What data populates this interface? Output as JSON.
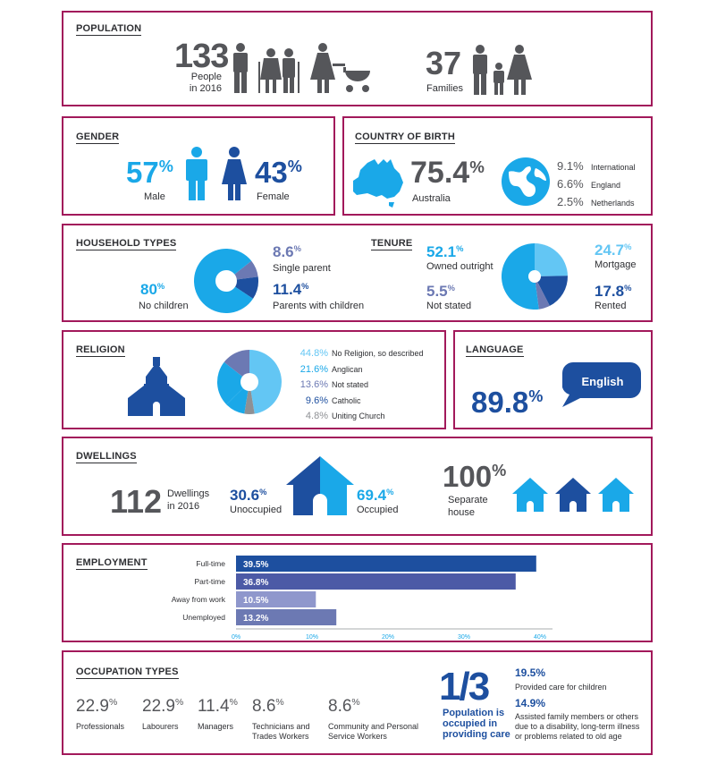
{
  "population": {
    "title": "POPULATION",
    "people": "133",
    "people_label1": "People",
    "people_label2": "in 2016",
    "families": "37",
    "families_label": "Families"
  },
  "gender": {
    "title": "GENDER",
    "male_value": "57",
    "male_label": "Male",
    "female_value": "43",
    "female_label": "Female",
    "pct": "%"
  },
  "cob": {
    "title": "COUNTRY OF BIRTH",
    "australia_value": "75.4",
    "pct": "%",
    "australia_label": "Australia",
    "others": [
      {
        "value": "9.1%",
        "label": "International"
      },
      {
        "value": "6.6%",
        "label": "England"
      },
      {
        "value": "2.5%",
        "label": "Netherlands"
      }
    ]
  },
  "household": {
    "title": "HOUSEHOLD TYPES",
    "no_children_value": "80",
    "no_children_label": "No children",
    "single_value": "8.6",
    "single_label": "Single parent",
    "pwc_value": "11.4",
    "pwc_label": "Parents with children",
    "pct": "%"
  },
  "tenure": {
    "title": "TENURE",
    "owned_value": "52.1",
    "owned_label": "Owned outright",
    "notstated_value": "5.5",
    "notstated_label": "Not stated",
    "mortgage_value": "24.7",
    "mortgage_label": "Mortgage",
    "rented_value": "17.8",
    "rented_label": "Rented",
    "pct": "%"
  },
  "religion": {
    "title": "RELIGION",
    "items": [
      {
        "value": "44.8%",
        "label": "No Religion, so described",
        "color": "#63c6f4"
      },
      {
        "value": "21.6%",
        "label": "Anglican",
        "color": "#1aa8e8"
      },
      {
        "value": "13.6%",
        "label": "Not stated",
        "color": "#6c79b3"
      },
      {
        "value": "9.6%",
        "label": "Catholic",
        "color": "#1d4f9f"
      },
      {
        "value": "4.8%",
        "label": "Uniting Church",
        "color": "#8e9094"
      }
    ]
  },
  "language": {
    "title": "LANGUAGE",
    "value": "89.8",
    "pct": "%",
    "bubble": "English"
  },
  "dwellings": {
    "title": "DWELLINGS",
    "total": "112",
    "total_label1": "Dwellings",
    "total_label2": "in 2016",
    "unoccupied_value": "30.6",
    "unoccupied_label": "Unoccupied",
    "occupied_value": "69.4",
    "occupied_label": "Occupied",
    "separate_value": "100",
    "separate_label1": "Separate",
    "separate_label2": "house",
    "pct": "%"
  },
  "employment": {
    "title": "EMPLOYMENT"
  },
  "occupation": {
    "title": "OCCUPATION TYPES",
    "items": [
      {
        "value": "22.9",
        "label1": "Professionals",
        "label2": ""
      },
      {
        "value": "22.9",
        "label1": "Labourers",
        "label2": ""
      },
      {
        "value": "11.4",
        "label1": "Managers",
        "label2": ""
      },
      {
        "value": "8.6",
        "label1": "Technicians and",
        "label2": "Trades Workers"
      },
      {
        "value": "8.6",
        "label1": "Community and Personal",
        "label2": "Service Workers"
      }
    ],
    "pct": "%",
    "care_big": "1/3",
    "care_l1": "Population is",
    "care_l2": "occupied in",
    "care_l3": "providing care",
    "care1_value": "19.5%",
    "care1_label": "Provided care for children",
    "care2_value": "14.9%",
    "care2_l1": "Assisted family members or others",
    "care2_l2": "due to a disability, long-term illness",
    "care2_l3": "or problems related to old age"
  },
  "colors": {
    "border": "#a2195b",
    "blue": "#1aa8e8",
    "light_blue": "#63c6f4",
    "navy": "#1d4f9f",
    "purple": "#6c79b3",
    "grey": "#8e9094"
  },
  "chart_data": [
    {
      "type": "pie",
      "title": "HOUSEHOLD TYPES",
      "categories": [
        "No children",
        "Single parent",
        "Parents with children"
      ],
      "values": [
        80,
        8.6,
        11.4
      ]
    },
    {
      "type": "pie",
      "title": "TENURE",
      "categories": [
        "Owned outright",
        "Mortgage",
        "Rented",
        "Not stated"
      ],
      "values": [
        52.1,
        24.7,
        17.8,
        5.5
      ]
    },
    {
      "type": "pie",
      "title": "RELIGION",
      "categories": [
        "No Religion, so described",
        "Anglican",
        "Not stated",
        "Catholic",
        "Uniting Church"
      ],
      "values": [
        44.8,
        21.6,
        13.6,
        9.6,
        4.8
      ]
    },
    {
      "type": "bar",
      "title": "EMPLOYMENT",
      "orientation": "horizontal",
      "categories": [
        "Full-time",
        "Part-time",
        "Away from work",
        "Unemployed"
      ],
      "values": [
        39.5,
        36.8,
        10.5,
        13.2
      ],
      "value_labels": [
        "39.5%",
        "36.8%",
        "10.5%",
        "13.2%"
      ],
      "xticks": [
        "0%",
        "10%",
        "20%",
        "30%",
        "40%"
      ],
      "xlim": [
        0,
        40
      ],
      "colors": [
        "#1d4f9f",
        "#4c5aa6",
        "#8f97cc",
        "#6c79b3"
      ]
    }
  ]
}
